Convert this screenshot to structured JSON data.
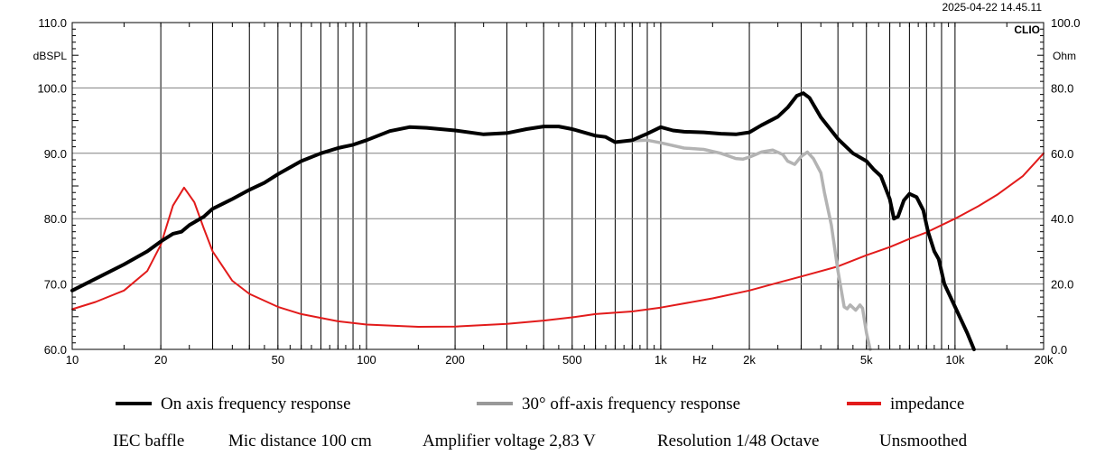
{
  "chart_data": {
    "type": "line",
    "timestamp": "2025-04-22 14.45.11",
    "brand": "CLIO",
    "xscale": "log",
    "xlim": [
      10,
      20000
    ],
    "xlabel": "Hz",
    "x_tick_labels": [
      {
        "value": 10,
        "label": "10"
      },
      {
        "value": 20,
        "label": "20"
      },
      {
        "value": 50,
        "label": "50"
      },
      {
        "value": 100,
        "label": "100"
      },
      {
        "value": 200,
        "label": "200"
      },
      {
        "value": 500,
        "label": "500"
      },
      {
        "value": 1000,
        "label": "1k"
      },
      {
        "value": 2000,
        "label": "2k"
      },
      {
        "value": 5000,
        "label": "5k"
      },
      {
        "value": 10000,
        "label": "10k"
      },
      {
        "value": 20000,
        "label": "20k"
      }
    ],
    "y_left": {
      "unit": "dBSPL",
      "range": [
        60,
        110
      ],
      "ticks": [
        {
          "value": 60,
          "label": "60.0"
        },
        {
          "value": 70,
          "label": "70.0"
        },
        {
          "value": 80,
          "label": "80.0"
        },
        {
          "value": 90,
          "label": "90.0"
        },
        {
          "value": 100,
          "label": "100.0"
        },
        {
          "value": 110,
          "label": "110.0"
        }
      ]
    },
    "y_right": {
      "unit": "Ohm",
      "range": [
        0,
        100
      ],
      "ticks": [
        {
          "value": 0,
          "label": "0.0"
        },
        {
          "value": 20,
          "label": "20.0"
        },
        {
          "value": 40,
          "label": "40.0"
        },
        {
          "value": 60,
          "label": "60.0"
        },
        {
          "value": 80,
          "label": "80.0"
        },
        {
          "value": 100,
          "label": "100.0"
        }
      ]
    },
    "series": [
      {
        "name": "On axis frequency response",
        "color": "#000000",
        "axis": "left",
        "points": [
          [
            10,
            69.0
          ],
          [
            12,
            70.8
          ],
          [
            15,
            73.0
          ],
          [
            18,
            75.0
          ],
          [
            20,
            76.5
          ],
          [
            22,
            77.7
          ],
          [
            23.5,
            78.0
          ],
          [
            25,
            79.0
          ],
          [
            28,
            80.3
          ],
          [
            30,
            81.5
          ],
          [
            35,
            83.0
          ],
          [
            40,
            84.4
          ],
          [
            45,
            85.5
          ],
          [
            50,
            86.8
          ],
          [
            60,
            88.8
          ],
          [
            70,
            90.0
          ],
          [
            80,
            90.8
          ],
          [
            90,
            91.3
          ],
          [
            100,
            92.0
          ],
          [
            120,
            93.4
          ],
          [
            140,
            94.0
          ],
          [
            160,
            93.9
          ],
          [
            200,
            93.5
          ],
          [
            250,
            92.9
          ],
          [
            300,
            93.1
          ],
          [
            350,
            93.7
          ],
          [
            400,
            94.1
          ],
          [
            450,
            94.1
          ],
          [
            500,
            93.7
          ],
          [
            600,
            92.7
          ],
          [
            650,
            92.5
          ],
          [
            700,
            91.7
          ],
          [
            800,
            92.0
          ],
          [
            900,
            93.0
          ],
          [
            1000,
            94.0
          ],
          [
            1100,
            93.5
          ],
          [
            1200,
            93.3
          ],
          [
            1400,
            93.2
          ],
          [
            1600,
            93.0
          ],
          [
            1800,
            92.9
          ],
          [
            2000,
            93.2
          ],
          [
            2200,
            94.3
          ],
          [
            2500,
            95.6
          ],
          [
            2700,
            97.0
          ],
          [
            2900,
            98.8
          ],
          [
            3050,
            99.2
          ],
          [
            3200,
            98.5
          ],
          [
            3500,
            95.5
          ],
          [
            4000,
            92.2
          ],
          [
            4500,
            90.0
          ],
          [
            5000,
            88.8
          ],
          [
            5300,
            87.5
          ],
          [
            5600,
            86.5
          ],
          [
            6000,
            83.0
          ],
          [
            6200,
            80.0
          ],
          [
            6400,
            80.3
          ],
          [
            6700,
            82.8
          ],
          [
            7000,
            83.8
          ],
          [
            7400,
            83.3
          ],
          [
            7800,
            81.3
          ],
          [
            8100,
            78.0
          ],
          [
            8500,
            75.0
          ],
          [
            8800,
            73.8
          ],
          [
            9200,
            70.0
          ],
          [
            10000,
            66.5
          ],
          [
            11000,
            62.5
          ],
          [
            11600,
            60.0
          ]
        ]
      },
      {
        "name": "30° off-axis frequency response",
        "color": "#b3b3b3",
        "axis": "left",
        "points": [
          [
            700,
            91.7
          ],
          [
            800,
            91.9
          ],
          [
            900,
            92.0
          ],
          [
            1000,
            91.6
          ],
          [
            1200,
            90.8
          ],
          [
            1400,
            90.6
          ],
          [
            1600,
            90.0
          ],
          [
            1800,
            89.2
          ],
          [
            1900,
            89.1
          ],
          [
            2000,
            89.4
          ],
          [
            2200,
            90.2
          ],
          [
            2400,
            90.5
          ],
          [
            2600,
            89.8
          ],
          [
            2700,
            88.8
          ],
          [
            2850,
            88.3
          ],
          [
            3000,
            89.5
          ],
          [
            3150,
            90.2
          ],
          [
            3300,
            89.2
          ],
          [
            3500,
            87.0
          ],
          [
            3600,
            84.0
          ],
          [
            3800,
            79.0
          ],
          [
            4000,
            72.0
          ],
          [
            4200,
            66.5
          ],
          [
            4300,
            66.2
          ],
          [
            4400,
            66.8
          ],
          [
            4600,
            66.0
          ],
          [
            4750,
            66.8
          ],
          [
            4850,
            66.3
          ],
          [
            5000,
            62.5
          ],
          [
            5150,
            60.0
          ]
        ]
      },
      {
        "name": "impedance",
        "color": "#e21b1b",
        "axis": "right",
        "points": [
          [
            10,
            12.3
          ],
          [
            12,
            14.5
          ],
          [
            15,
            18.0
          ],
          [
            18,
            24.0
          ],
          [
            20,
            32.0
          ],
          [
            22,
            44.0
          ],
          [
            24,
            49.5
          ],
          [
            26,
            45.0
          ],
          [
            28,
            37.0
          ],
          [
            30,
            30.0
          ],
          [
            35,
            21.0
          ],
          [
            40,
            17.0
          ],
          [
            50,
            13.0
          ],
          [
            60,
            10.8
          ],
          [
            80,
            8.6
          ],
          [
            100,
            7.6
          ],
          [
            150,
            6.9
          ],
          [
            200,
            7.0
          ],
          [
            300,
            7.8
          ],
          [
            400,
            8.8
          ],
          [
            500,
            9.8
          ],
          [
            600,
            10.8
          ],
          [
            800,
            11.6
          ],
          [
            1000,
            12.8
          ],
          [
            1500,
            15.6
          ],
          [
            2000,
            18.0
          ],
          [
            2500,
            20.4
          ],
          [
            3000,
            22.3
          ],
          [
            4000,
            25.4
          ],
          [
            5000,
            28.8
          ],
          [
            6000,
            31.3
          ],
          [
            7000,
            33.8
          ],
          [
            8000,
            35.8
          ],
          [
            10000,
            40.0
          ],
          [
            12000,
            43.8
          ],
          [
            14000,
            47.5
          ],
          [
            17000,
            53.0
          ],
          [
            20000,
            60.0
          ]
        ]
      }
    ],
    "legend": [
      {
        "label": "On axis frequency response",
        "color": "#000000"
      },
      {
        "label": "30° off-axis frequency response",
        "color": "#999999"
      },
      {
        "label": "impedance",
        "color": "#e21b1b"
      }
    ],
    "footer": [
      "IEC baffle",
      "Mic distance 100 cm",
      "Amplifier voltage 2,83 V",
      "Resolution 1/48 Octave",
      "Unsmoothed"
    ]
  }
}
